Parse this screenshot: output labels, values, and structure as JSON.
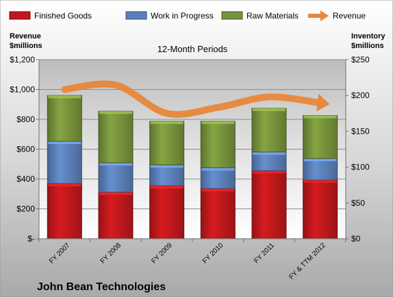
{
  "chart_data": {
    "type": "bar",
    "subtitle": "12-Month Periods",
    "company": "John Bean Technologies",
    "left_axis_title": [
      "Revenue",
      "$millions"
    ],
    "right_axis_title": [
      "Inventory",
      "$millions"
    ],
    "categories": [
      "FY 2007",
      "FY 2008",
      "FY 2009",
      "FY 2010",
      "FY 2011",
      "FY & TTM 2012"
    ],
    "left_axis": {
      "ylim": [
        0,
        1200
      ],
      "ticks": [
        0,
        200,
        400,
        600,
        800,
        1000,
        1200
      ],
      "tick_labels": [
        "$-",
        "$200",
        "$400",
        "$600",
        "$800",
        "$1,000",
        "$1,200"
      ]
    },
    "right_axis": {
      "ylim": [
        0,
        250
      ],
      "ticks": [
        0,
        50,
        100,
        150,
        200,
        250
      ],
      "tick_labels": [
        "$0",
        "$50",
        "$100",
        "$150",
        "$200",
        "$250"
      ]
    },
    "series": [
      {
        "name": "Finished Goods",
        "kind": "stacked-bar",
        "axis": "right",
        "color": "#c0181c",
        "values": [
          77,
          65,
          74,
          70,
          95,
          82
        ]
      },
      {
        "name": "Work in Progress",
        "kind": "stacked-bar",
        "axis": "right",
        "color": "#5b80b9",
        "values": [
          59,
          41,
          29,
          29,
          26,
          30
        ]
      },
      {
        "name": "Raw Materials",
        "kind": "stacked-bar",
        "axis": "right",
        "color": "#77933c",
        "values": [
          64,
          72,
          61,
          65,
          61,
          60
        ]
      },
      {
        "name": "Revenue",
        "kind": "line",
        "axis": "left",
        "color": "#e8873a",
        "values": [
          1000,
          1030,
          840,
          880,
          950,
          910
        ]
      }
    ],
    "grid": true,
    "legend_position": "top"
  }
}
